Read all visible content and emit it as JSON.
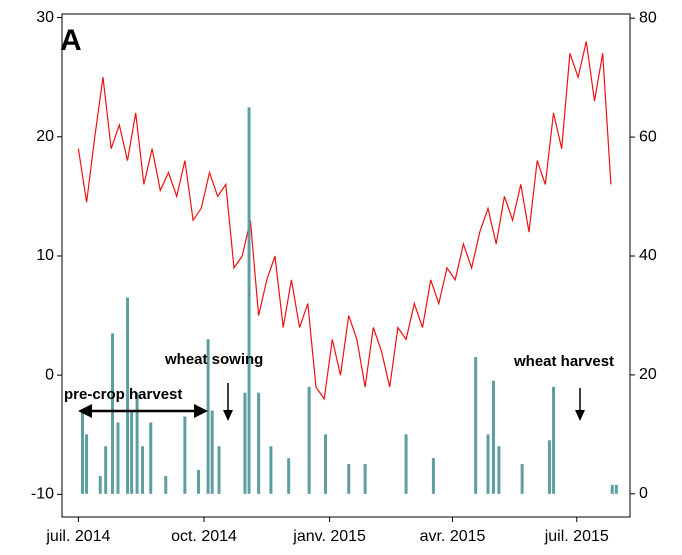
{
  "chart_data": {
    "type": "line-bar",
    "panel_label": "A",
    "annotations": [
      "pre-crop harvest",
      "wheat sowing",
      "wheat harvest"
    ],
    "xlim": [
      "2014-06-19",
      "2015-08-09"
    ],
    "xticks": [
      {
        "value": "2014-07-01",
        "label": "juil. 2014"
      },
      {
        "value": "2014-10-01",
        "label": "oct. 2014"
      },
      {
        "value": "2015-01-01",
        "label": "janv. 2015"
      },
      {
        "value": "2015-04-01",
        "label": "avr. 2015"
      },
      {
        "value": "2015-07-01",
        "label": "juil. 2015"
      }
    ],
    "ylim": [
      -11.9,
      30.3
    ],
    "yticks": [
      -10,
      0,
      10,
      20,
      30
    ],
    "y2lim": [
      -3.9,
      80.7
    ],
    "y2ticks": [
      0,
      20,
      40,
      60,
      80
    ],
    "series": [
      {
        "kind": "line",
        "color": "#ee1111",
        "x": [
          "2014-07-01",
          "2014-07-07",
          "2014-07-13",
          "2014-07-19",
          "2014-07-25",
          "2014-07-31",
          "2014-08-06",
          "2014-08-12",
          "2014-08-18",
          "2014-08-24",
          "2014-08-30",
          "2014-09-05",
          "2014-09-11",
          "2014-09-17",
          "2014-09-23",
          "2014-09-29",
          "2014-10-05",
          "2014-10-11",
          "2014-10-17",
          "2014-10-23",
          "2014-10-29",
          "2014-11-04",
          "2014-11-10",
          "2014-11-16",
          "2014-11-22",
          "2014-11-28",
          "2014-12-04",
          "2014-12-10",
          "2014-12-16",
          "2014-12-22",
          "2014-12-28",
          "2015-01-03",
          "2015-01-09",
          "2015-01-15",
          "2015-01-21",
          "2015-01-27",
          "2015-02-02",
          "2015-02-08",
          "2015-02-14",
          "2015-02-20",
          "2015-02-26",
          "2015-03-04",
          "2015-03-10",
          "2015-03-16",
          "2015-03-22",
          "2015-03-28",
          "2015-04-03",
          "2015-04-09",
          "2015-04-15",
          "2015-04-21",
          "2015-04-27",
          "2015-05-03",
          "2015-05-09",
          "2015-05-15",
          "2015-05-21",
          "2015-05-27",
          "2015-06-02",
          "2015-06-08",
          "2015-06-14",
          "2015-06-20",
          "2015-06-26",
          "2015-07-02",
          "2015-07-08",
          "2015-07-14",
          "2015-07-20",
          "2015-07-26"
        ],
        "values": [
          19,
          14.5,
          20,
          25,
          19,
          21,
          18,
          22,
          16,
          19,
          15.5,
          17,
          15,
          18,
          13,
          14,
          17,
          15,
          16,
          9,
          10,
          13,
          5,
          8,
          10,
          4,
          8,
          4,
          6,
          -1,
          -2,
          3,
          0,
          5,
          3,
          -1,
          4,
          2,
          -1,
          4,
          3,
          6,
          4,
          8,
          6,
          9,
          8,
          11,
          9,
          12,
          14,
          11,
          15,
          13,
          16,
          12,
          18,
          16,
          22,
          19,
          27,
          25,
          28,
          23,
          27,
          16
        ]
      },
      {
        "kind": "bar",
        "axis": "y2",
        "color": "#5f9ea0",
        "x": [
          "2014-07-04",
          "2014-07-07",
          "2014-07-17",
          "2014-07-21",
          "2014-07-26",
          "2014-07-30",
          "2014-08-06",
          "2014-08-09",
          "2014-08-13",
          "2014-08-17",
          "2014-08-23",
          "2014-09-03",
          "2014-09-17",
          "2014-09-27",
          "2014-10-04",
          "2014-10-07",
          "2014-10-12",
          "2014-10-31",
          "2014-11-03",
          "2014-11-10",
          "2014-11-19",
          "2014-12-02",
          "2014-12-17",
          "2014-12-29",
          "2015-01-15",
          "2015-01-27",
          "2015-02-26",
          "2015-03-18",
          "2015-04-18",
          "2015-04-27",
          "2015-05-01",
          "2015-05-05",
          "2015-05-22",
          "2015-06-11",
          "2015-06-14",
          "2015-07-27",
          "2015-07-30"
        ],
        "values": [
          14,
          10,
          3,
          8,
          27,
          12,
          33,
          14,
          17,
          8,
          12,
          3,
          13,
          4,
          26,
          14,
          8,
          17,
          65,
          17,
          8,
          6,
          18,
          10,
          5,
          5,
          10,
          6,
          23,
          10,
          19,
          8,
          5,
          9,
          18,
          1.5,
          1.5
        ]
      }
    ]
  }
}
